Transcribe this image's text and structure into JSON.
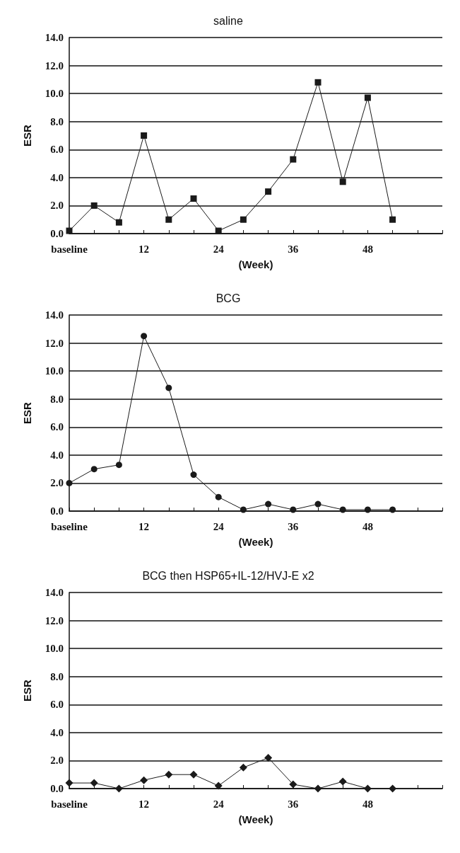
{
  "chart_data": [
    {
      "type": "line",
      "title": "saline",
      "xlabel": "(Week)",
      "ylabel": "ESR",
      "categories": [
        "baseline",
        null,
        null,
        "12",
        null,
        null,
        "24",
        null,
        null,
        "36",
        null,
        null,
        "48",
        null,
        null,
        null
      ],
      "series": [
        {
          "color": "#1a1a1a",
          "values": [
            0.2,
            2.0,
            0.8,
            7.0,
            1.0,
            2.5,
            0.2,
            1.0,
            3.0,
            5.3,
            10.8,
            3.7,
            9.7,
            1.0,
            null,
            null
          ]
        }
      ],
      "marker": "square",
      "ylim": [
        0,
        14
      ],
      "yticks": [
        {
          "value": 0,
          "label": "0.0"
        },
        {
          "value": 2,
          "label": "2.0"
        },
        {
          "value": 4,
          "label": "4.0"
        },
        {
          "value": 6,
          "label": "6.0"
        },
        {
          "value": 8,
          "label": "8.0"
        },
        {
          "value": 10,
          "label": "10.0"
        },
        {
          "value": 12,
          "label": "12.0"
        },
        {
          "value": 14,
          "label": "14.0"
        }
      ],
      "grid": "y"
    },
    {
      "type": "line",
      "title": "BCG",
      "xlabel": "(Week)",
      "ylabel": "ESR",
      "categories": [
        "baseline",
        null,
        null,
        "12",
        null,
        null,
        "24",
        null,
        null,
        "36",
        null,
        null,
        "48",
        null,
        null,
        null
      ],
      "series": [
        {
          "color": "#1a1a1a",
          "values": [
            2.0,
            3.0,
            3.3,
            12.5,
            8.8,
            2.6,
            1.0,
            0.1,
            0.5,
            0.1,
            0.5,
            0.1,
            0.1,
            0.1,
            null,
            null
          ]
        }
      ],
      "marker": "circle",
      "ylim": [
        0,
        14
      ],
      "yticks": [
        {
          "value": 0,
          "label": "0.0"
        },
        {
          "value": 2,
          "label": "2.0"
        },
        {
          "value": 4,
          "label": "4.0"
        },
        {
          "value": 6,
          "label": "6.0"
        },
        {
          "value": 8,
          "label": "8.0"
        },
        {
          "value": 10,
          "label": "10.0"
        },
        {
          "value": 12,
          "label": "12.0"
        },
        {
          "value": 14,
          "label": "14.0"
        }
      ],
      "grid": "y"
    },
    {
      "type": "line",
      "title": "BCG then HSP65+IL-12/HVJ-E x2",
      "xlabel": "(Week)",
      "ylabel": "ESR",
      "categories": [
        "baseline",
        null,
        null,
        "12",
        null,
        null,
        "24",
        null,
        null,
        "36",
        null,
        null,
        "48",
        null,
        null,
        null
      ],
      "series": [
        {
          "color": "#1a1a1a",
          "values": [
            0.4,
            0.4,
            0.0,
            0.6,
            1.0,
            1.0,
            0.2,
            1.5,
            2.2,
            0.3,
            0.0,
            0.5,
            0.0,
            0.0,
            null,
            null
          ]
        }
      ],
      "marker": "diamond",
      "ylim": [
        0,
        14
      ],
      "yticks": [
        {
          "value": 0,
          "label": "0.0"
        },
        {
          "value": 2,
          "label": "2.0"
        },
        {
          "value": 4,
          "label": "4.0"
        },
        {
          "value": 6,
          "label": "6.0"
        },
        {
          "value": 8,
          "label": "8.0"
        },
        {
          "value": 10,
          "label": "10.0"
        },
        {
          "value": 12,
          "label": "12.0"
        },
        {
          "value": 14,
          "label": "14.0"
        }
      ],
      "grid": "y"
    }
  ]
}
